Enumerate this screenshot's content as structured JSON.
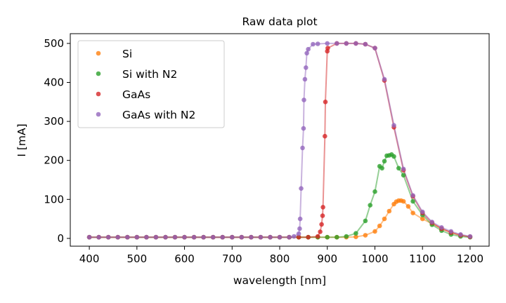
{
  "chart_data": {
    "type": "line",
    "title": "Raw data plot",
    "xlabel": "wavelength [nm]",
    "ylabel": "I [mA]",
    "xlim": [
      360,
      1240
    ],
    "ylim": [
      -20,
      525
    ],
    "xticks": [
      400,
      500,
      600,
      700,
      800,
      900,
      1000,
      1100,
      1200
    ],
    "yticks": [
      0,
      100,
      200,
      300,
      400,
      500
    ],
    "grid": false,
    "legend_position": "top-left",
    "series": [
      {
        "name": "Si",
        "color": "#ff7f0e",
        "points": [
          [
            400,
            3
          ],
          [
            420,
            3
          ],
          [
            440,
            3
          ],
          [
            460,
            3
          ],
          [
            480,
            3
          ],
          [
            500,
            3
          ],
          [
            520,
            3
          ],
          [
            540,
            3
          ],
          [
            560,
            3
          ],
          [
            580,
            3
          ],
          [
            600,
            3
          ],
          [
            620,
            3
          ],
          [
            640,
            3
          ],
          [
            660,
            3
          ],
          [
            680,
            3
          ],
          [
            700,
            3
          ],
          [
            720,
            3
          ],
          [
            740,
            3
          ],
          [
            760,
            3
          ],
          [
            780,
            3
          ],
          [
            800,
            3
          ],
          [
            820,
            3
          ],
          [
            840,
            3
          ],
          [
            860,
            3
          ],
          [
            880,
            3
          ],
          [
            900,
            3
          ],
          [
            920,
            3
          ],
          [
            940,
            3
          ],
          [
            960,
            4
          ],
          [
            980,
            8
          ],
          [
            1000,
            18
          ],
          [
            1010,
            32
          ],
          [
            1020,
            50
          ],
          [
            1030,
            70
          ],
          [
            1040,
            88
          ],
          [
            1045,
            94
          ],
          [
            1050,
            97
          ],
          [
            1055,
            97
          ],
          [
            1060,
            95
          ],
          [
            1070,
            82
          ],
          [
            1080,
            65
          ],
          [
            1100,
            50
          ],
          [
            1120,
            38
          ],
          [
            1140,
            25
          ],
          [
            1160,
            15
          ],
          [
            1180,
            8
          ],
          [
            1200,
            4
          ]
        ]
      },
      {
        "name": "Si with N2",
        "color": "#2ca02c",
        "points": [
          [
            400,
            3
          ],
          [
            420,
            3
          ],
          [
            440,
            3
          ],
          [
            460,
            3
          ],
          [
            480,
            3
          ],
          [
            500,
            3
          ],
          [
            520,
            3
          ],
          [
            540,
            3
          ],
          [
            560,
            3
          ],
          [
            580,
            3
          ],
          [
            600,
            3
          ],
          [
            620,
            3
          ],
          [
            640,
            3
          ],
          [
            660,
            3
          ],
          [
            680,
            3
          ],
          [
            700,
            3
          ],
          [
            720,
            3
          ],
          [
            740,
            3
          ],
          [
            760,
            3
          ],
          [
            780,
            3
          ],
          [
            800,
            3
          ],
          [
            820,
            3
          ],
          [
            840,
            3
          ],
          [
            860,
            3
          ],
          [
            880,
            3
          ],
          [
            900,
            3
          ],
          [
            920,
            3
          ],
          [
            940,
            5
          ],
          [
            960,
            13
          ],
          [
            980,
            45
          ],
          [
            990,
            85
          ],
          [
            1000,
            120
          ],
          [
            1010,
            185
          ],
          [
            1015,
            180
          ],
          [
            1020,
            198
          ],
          [
            1025,
            212
          ],
          [
            1030,
            213
          ],
          [
            1035,
            215
          ],
          [
            1040,
            210
          ],
          [
            1050,
            180
          ],
          [
            1060,
            162
          ],
          [
            1080,
            95
          ],
          [
            1100,
            60
          ],
          [
            1120,
            35
          ],
          [
            1140,
            20
          ],
          [
            1160,
            10
          ],
          [
            1180,
            5
          ],
          [
            1200,
            3
          ]
        ]
      },
      {
        "name": "GaAs",
        "color": "#d62728",
        "points": [
          [
            400,
            3
          ],
          [
            420,
            3
          ],
          [
            440,
            3
          ],
          [
            460,
            3
          ],
          [
            480,
            3
          ],
          [
            500,
            3
          ],
          [
            520,
            3
          ],
          [
            540,
            3
          ],
          [
            560,
            3
          ],
          [
            580,
            3
          ],
          [
            600,
            3
          ],
          [
            620,
            3
          ],
          [
            640,
            3
          ],
          [
            660,
            3
          ],
          [
            680,
            3
          ],
          [
            700,
            3
          ],
          [
            720,
            3
          ],
          [
            740,
            3
          ],
          [
            760,
            3
          ],
          [
            780,
            3
          ],
          [
            800,
            3
          ],
          [
            820,
            3
          ],
          [
            840,
            3
          ],
          [
            860,
            3
          ],
          [
            880,
            5
          ],
          [
            885,
            17
          ],
          [
            888,
            36
          ],
          [
            890,
            58
          ],
          [
            891,
            80
          ],
          [
            895,
            262
          ],
          [
            896,
            350
          ],
          [
            900,
            480
          ],
          [
            901,
            488
          ],
          [
            920,
            500
          ],
          [
            940,
            500
          ],
          [
            960,
            500
          ],
          [
            980,
            498
          ],
          [
            1000,
            488
          ],
          [
            1020,
            405
          ],
          [
            1040,
            285
          ],
          [
            1060,
            175
          ],
          [
            1080,
            108
          ],
          [
            1100,
            65
          ],
          [
            1120,
            40
          ],
          [
            1140,
            25
          ],
          [
            1160,
            15
          ],
          [
            1180,
            8
          ],
          [
            1200,
            4
          ]
        ]
      },
      {
        "name": "GaAs with N2",
        "color": "#9467bd",
        "points": [
          [
            400,
            3
          ],
          [
            420,
            3
          ],
          [
            440,
            3
          ],
          [
            460,
            3
          ],
          [
            480,
            3
          ],
          [
            500,
            3
          ],
          [
            520,
            3
          ],
          [
            540,
            3
          ],
          [
            560,
            3
          ],
          [
            580,
            3
          ],
          [
            600,
            3
          ],
          [
            620,
            3
          ],
          [
            640,
            3
          ],
          [
            660,
            3
          ],
          [
            680,
            3
          ],
          [
            700,
            3
          ],
          [
            720,
            3
          ],
          [
            740,
            3
          ],
          [
            760,
            3
          ],
          [
            780,
            3
          ],
          [
            800,
            3
          ],
          [
            820,
            3
          ],
          [
            830,
            5
          ],
          [
            840,
            12
          ],
          [
            842,
            25
          ],
          [
            843,
            50
          ],
          [
            845,
            128
          ],
          [
            848,
            232
          ],
          [
            850,
            282
          ],
          [
            851,
            355
          ],
          [
            853,
            408
          ],
          [
            855,
            438
          ],
          [
            857,
            475
          ],
          [
            860,
            485
          ],
          [
            870,
            498
          ],
          [
            880,
            499
          ],
          [
            900,
            500
          ],
          [
            920,
            500
          ],
          [
            940,
            500
          ],
          [
            960,
            500
          ],
          [
            980,
            498
          ],
          [
            1000,
            488
          ],
          [
            1020,
            408
          ],
          [
            1040,
            290
          ],
          [
            1060,
            178
          ],
          [
            1080,
            110
          ],
          [
            1100,
            68
          ],
          [
            1120,
            42
          ],
          [
            1140,
            28
          ],
          [
            1160,
            18
          ],
          [
            1180,
            10
          ],
          [
            1200,
            5
          ]
        ]
      }
    ]
  }
}
